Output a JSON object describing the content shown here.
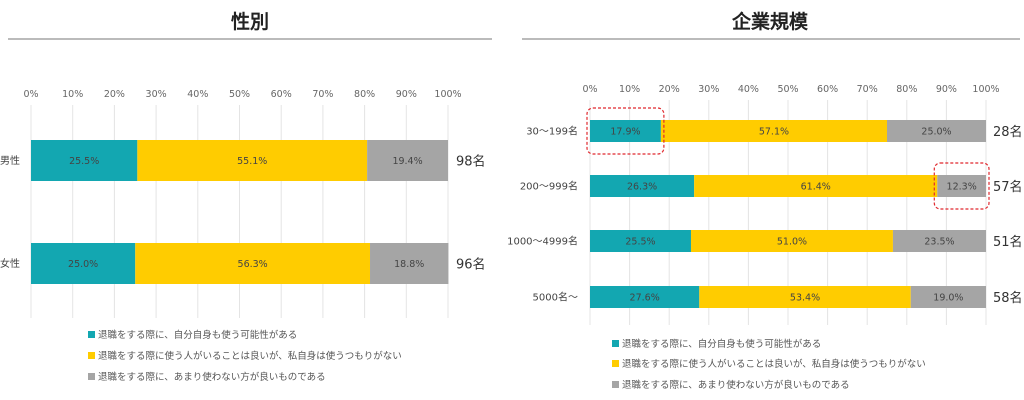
{
  "colors": {
    "series1": "#13A7B1",
    "series2": "#FFCC00",
    "series3": "#A5A5A5",
    "highlight": "#E0282E"
  },
  "chart_data": [
    {
      "type": "bar",
      "orientation": "horizontal-stacked-100",
      "title": "性別",
      "xlim": [
        0,
        100
      ],
      "x_ticks": [
        "0%",
        "10%",
        "20%",
        "30%",
        "40%",
        "50%",
        "60%",
        "70%",
        "80%",
        "90%",
        "100%"
      ],
      "categories": [
        "男性",
        "女性"
      ],
      "counts": [
        "98名",
        "96名"
      ],
      "series": [
        {
          "name": "退職をする際に、自分自身も使う可能性がある",
          "values": [
            25.5,
            25.0
          ],
          "labels": [
            "25.5%",
            "25.0%"
          ]
        },
        {
          "name": "退職をする際に使う人がいることは良いが、私自身は使うつもりがない",
          "values": [
            55.1,
            56.3
          ],
          "labels": [
            "55.1%",
            "56.3%"
          ]
        },
        {
          "name": "退職をする際に、あまり使わない方が良いものである",
          "values": [
            19.4,
            18.8
          ],
          "labels": [
            "19.4%",
            "18.8%"
          ]
        }
      ],
      "grid": true,
      "legend": "bottom"
    },
    {
      "type": "bar",
      "orientation": "horizontal-stacked-100",
      "title": "企業規模",
      "xlim": [
        0,
        100
      ],
      "x_ticks": [
        "0%",
        "10%",
        "20%",
        "30%",
        "40%",
        "50%",
        "60%",
        "70%",
        "80%",
        "90%",
        "100%"
      ],
      "categories": [
        "30～199名",
        "200～999名",
        "1000～4999名",
        "5000名～"
      ],
      "counts": [
        "28名",
        "57名",
        "51名",
        "58名"
      ],
      "series": [
        {
          "name": "退職をする際に、自分自身も使う可能性がある",
          "values": [
            17.9,
            26.3,
            25.5,
            27.6
          ],
          "labels": [
            "17.9%",
            "26.3%",
            "25.5%",
            "27.6%"
          ]
        },
        {
          "name": "退職をする際に使う人がいることは良いが、私自身は使うつもりがない",
          "values": [
            57.1,
            61.4,
            51.0,
            53.4
          ],
          "labels": [
            "57.1%",
            "61.4%",
            "51.0%",
            "53.4%"
          ]
        },
        {
          "name": "退職をする際に、あまり使わない方が良いものである",
          "values": [
            25.0,
            12.3,
            23.5,
            19.0
          ],
          "labels": [
            "25.0%",
            "12.3%",
            "23.5%",
            "19.0%"
          ]
        }
      ],
      "highlights": [
        {
          "category": 0,
          "series": 0
        },
        {
          "category": 1,
          "series": 2
        }
      ],
      "grid": true,
      "legend": "bottom"
    }
  ]
}
